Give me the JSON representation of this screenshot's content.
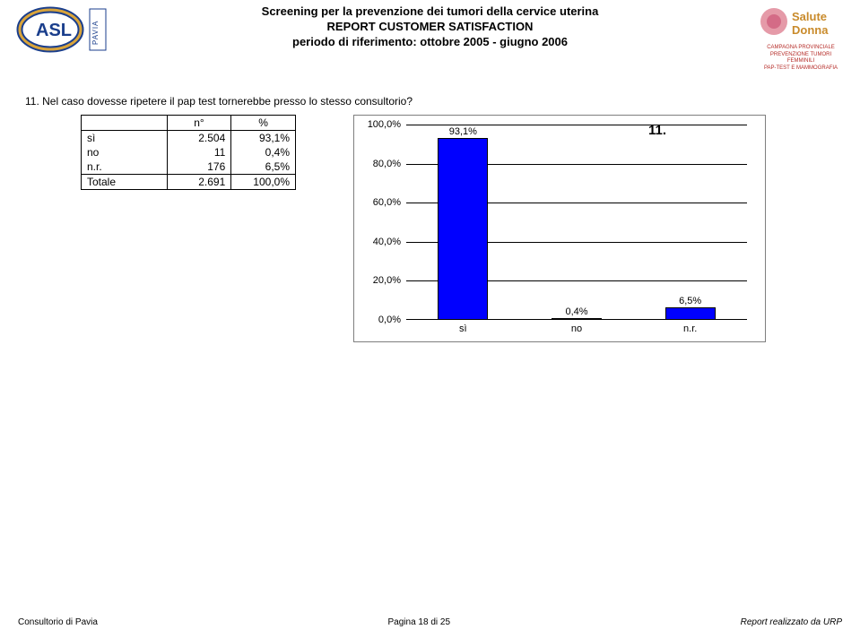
{
  "header": {
    "line1": "Screening per la prevenzione dei tumori della cervice uterina",
    "line2": "REPORT CUSTOMER SATISFACTION",
    "line3": "periodo di riferimento: ottobre 2005 - giugno 2006",
    "logo_right_line1": "Salute",
    "logo_right_line2": "Donna",
    "logo_right_sub1": "CAMPAGNA PROVINCIALE",
    "logo_right_sub2": "PREVENZIONE TUMORI FEMMINILI",
    "logo_right_sub3": "PAP-TEST E MAMMOGRAFIA",
    "logo_left_text": "PAVIA"
  },
  "question": "11. Nel caso dovesse ripetere il pap test tornerebbe presso lo stesso consultorio?",
  "table": {
    "col_n": "n°",
    "col_pct": "%",
    "rows": [
      {
        "label": "sì",
        "n": "2.504",
        "pct": "93,1%"
      },
      {
        "label": "no",
        "n": "11",
        "pct": "0,4%"
      },
      {
        "label": "n.r.",
        "n": "176",
        "pct": "6,5%"
      },
      {
        "label": "Totale",
        "n": "2.691",
        "pct": "100,0%"
      }
    ]
  },
  "chart": {
    "title": "11.",
    "type": "bar",
    "categories": [
      "sì",
      "no",
      "n.r."
    ],
    "values": [
      93.1,
      0.4,
      6.5
    ],
    "value_labels": [
      "93,1%",
      "0,4%",
      "6,5%"
    ],
    "bar_color": "#0000ff",
    "bar_border": "#000000",
    "ylim": [
      0,
      100
    ],
    "ytick_step": 20,
    "yticks": [
      "0,0%",
      "20,0%",
      "40,0%",
      "60,0%",
      "80,0%",
      "100,0%"
    ],
    "background_color": "#ffffff",
    "grid_color": "#000000",
    "chart_border_color": "#7f7f7f",
    "bar_width": 0.44,
    "label_fontsize": 11,
    "title_fontsize": 15
  },
  "footer": {
    "left": "Consultorio di Pavia",
    "center": "Pagina 18 di 25",
    "right": "Report realizzato da URP"
  }
}
